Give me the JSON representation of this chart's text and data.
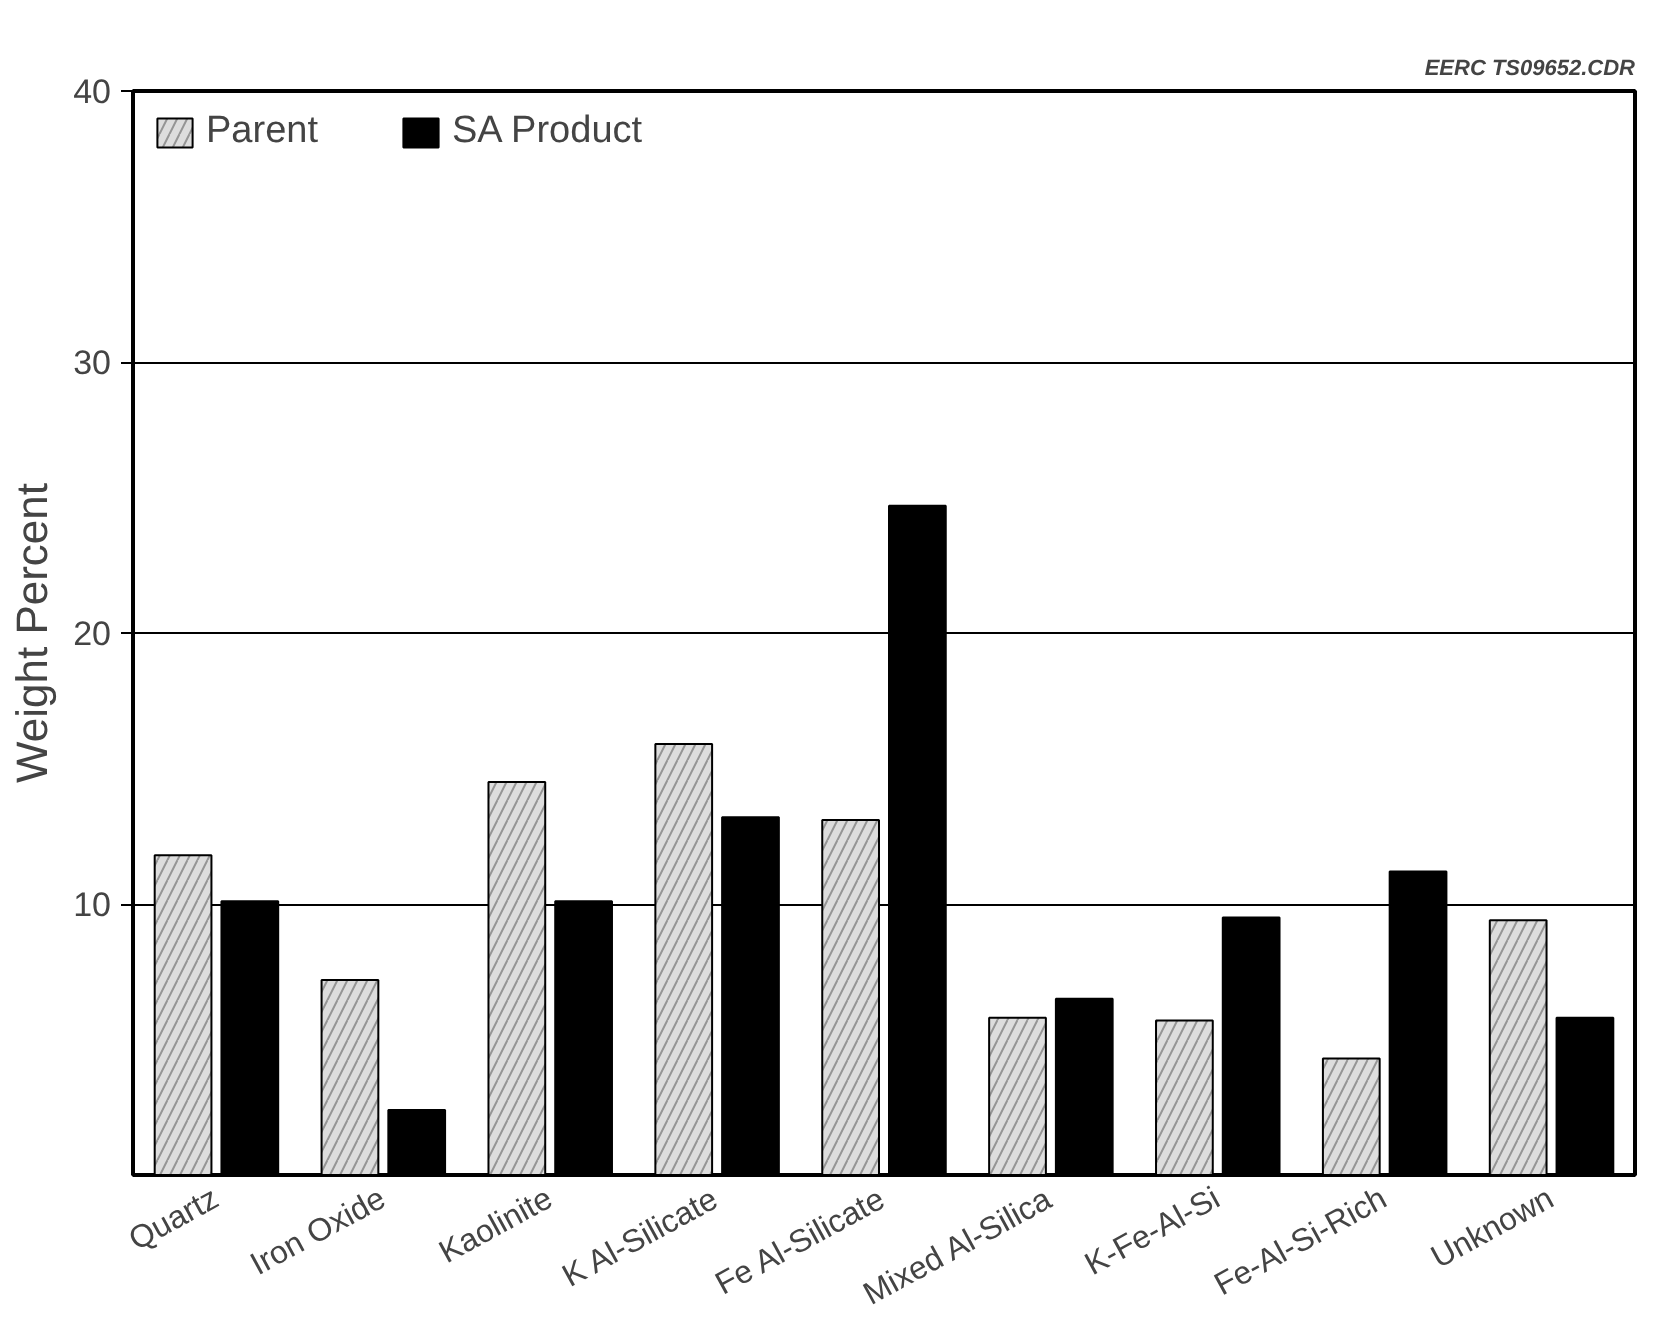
{
  "chart_data": {
    "type": "bar",
    "ylabel": "Weight Percent",
    "annotations": [
      "EERC TS09652.CDR"
    ],
    "categories": [
      "Quartz",
      "Iron Oxide",
      "Kaolinite",
      "K Al-Silicate",
      "Fe Al-Silicate",
      "Mixed Al-Silica",
      "K-Fe-Al-Si",
      "Fe-Al-Si-Rich",
      "Unknown"
    ],
    "series": [
      {
        "name": "Parent",
        "color": "#dddddd",
        "values": [
          11.8,
          7.2,
          14.5,
          15.9,
          13.1,
          5.8,
          5.7,
          4.3,
          9.4
        ]
      },
      {
        "name": "SA Product",
        "color": "#000000",
        "values": [
          10.1,
          2.4,
          10.1,
          13.2,
          24.7,
          6.5,
          9.5,
          11.2,
          5.8
        ]
      }
    ],
    "ylim": [
      0,
      40
    ],
    "yticks": [
      10,
      20,
      30,
      40
    ],
    "grid": "y",
    "legend": "top left"
  }
}
